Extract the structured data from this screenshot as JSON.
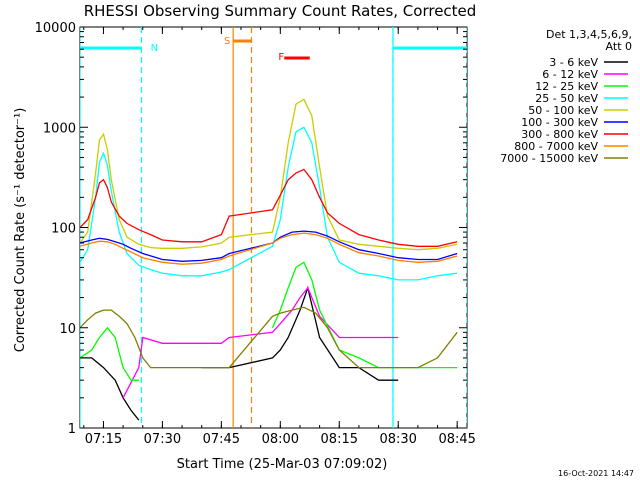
{
  "chart_data": {
    "type": "line",
    "title": "RHESSI Observing Summary Count Rates, Corrected",
    "xlabel": "Start Time (25-Mar-03 07:09:02)",
    "ylabel": "Corrected Count Rate (s⁻¹ detector⁻¹)",
    "y_scale": "log",
    "ylim": [
      1,
      10000
    ],
    "xlim": [
      "07:09:02",
      "08:47:30"
    ],
    "x_ticks": [
      "07:15",
      "07:30",
      "07:45",
      "08:00",
      "08:15",
      "08:30",
      "08:45"
    ],
    "y_ticks": [
      "1",
      "10",
      "100",
      "1000",
      "10000"
    ],
    "grid": false,
    "legend_position": "top-right",
    "legend_header": [
      "Det 1,3,4,5,6,9,",
      "Att 0"
    ],
    "series": [
      {
        "name": "3 - 6 keV",
        "color": "#000000",
        "x": [
          "07:09",
          "07:12",
          "07:15",
          "07:18",
          "07:20",
          "07:22",
          "07:24",
          "07:26",
          "07:30",
          "07:35",
          "07:40",
          "07:45",
          "07:47",
          "07:58",
          "08:00",
          "08:02",
          "08:05",
          "08:07",
          "08:10",
          "08:15",
          "08:20",
          "08:25",
          "08:30"
        ],
        "y": [
          5,
          5,
          4,
          3,
          2,
          1.5,
          1.2,
          null,
          null,
          null,
          4,
          4,
          4,
          5,
          6,
          8,
          15,
          25,
          8,
          4,
          4,
          3,
          3
        ]
      },
      {
        "name": "6 - 12 keV",
        "color": "#ff00ff",
        "x": [
          "07:20",
          "07:24",
          "07:25",
          "07:30",
          "07:35",
          "07:40",
          "07:45",
          "07:47",
          "07:58",
          "08:00",
          "08:03",
          "08:05",
          "08:07",
          "08:10",
          "08:15",
          "08:20",
          "08:25",
          "08:30"
        ],
        "y": [
          2,
          4,
          8,
          7,
          7,
          7,
          7,
          8,
          9,
          11,
          15,
          20,
          25,
          13,
          8,
          8,
          8,
          8
        ]
      },
      {
        "name": "12 - 25 keV",
        "color": "#00ff00",
        "x": [
          "07:09",
          "07:12",
          "07:14",
          "07:16",
          "07:18",
          "07:20",
          "07:22",
          "07:24",
          "07:26",
          "07:30",
          "07:40",
          "07:47",
          "07:58",
          "08:00",
          "08:02",
          "08:04",
          "08:06",
          "08:08",
          "08:10",
          "08:15",
          "08:20",
          "08:25",
          "08:30",
          "08:40",
          "08:45"
        ],
        "y": [
          5,
          6,
          8,
          10,
          8,
          4,
          3,
          3,
          null,
          null,
          null,
          null,
          10,
          15,
          25,
          40,
          45,
          30,
          15,
          6,
          5,
          4,
          4,
          4,
          4
        ]
      },
      {
        "name": "25 - 50 keV",
        "color": "#00ffff",
        "x": [
          "07:09",
          "07:11",
          "07:13",
          "07:14",
          "07:15",
          "07:16",
          "07:17",
          "07:19",
          "07:21",
          "07:24",
          "07:27",
          "07:30",
          "07:35",
          "07:40",
          "07:45",
          "07:47",
          "07:58",
          "08:00",
          "08:02",
          "08:04",
          "08:06",
          "08:08",
          "08:10",
          "08:12",
          "08:15",
          "08:20",
          "08:25",
          "08:30",
          "08:35",
          "08:40",
          "08:45"
        ],
        "y": [
          45,
          60,
          200,
          450,
          550,
          420,
          230,
          90,
          55,
          42,
          38,
          35,
          33,
          33,
          36,
          38,
          65,
          120,
          400,
          900,
          1000,
          700,
          250,
          80,
          45,
          35,
          33,
          30,
          30,
          33,
          35
        ]
      },
      {
        "name": "50 - 100 keV",
        "color": "#cccc00",
        "x": [
          "07:09",
          "07:11",
          "07:13",
          "07:14",
          "07:15",
          "07:16",
          "07:17",
          "07:19",
          "07:21",
          "07:24",
          "07:27",
          "07:30",
          "07:35",
          "07:40",
          "07:45",
          "07:47",
          "07:58",
          "08:00",
          "08:02",
          "08:04",
          "08:06",
          "08:08",
          "08:10",
          "08:12",
          "08:15",
          "08:20",
          "08:25",
          "08:30",
          "08:35",
          "08:40",
          "08:45"
        ],
        "y": [
          70,
          90,
          350,
          750,
          850,
          600,
          300,
          120,
          80,
          68,
          63,
          62,
          62,
          64,
          70,
          80,
          90,
          200,
          700,
          1700,
          1900,
          1300,
          400,
          130,
          75,
          68,
          65,
          62,
          60,
          62,
          68
        ]
      },
      {
        "name": "100 - 300 keV",
        "color": "#0000ff",
        "x": [
          "07:09",
          "07:12",
          "07:14",
          "07:16",
          "07:18",
          "07:20",
          "07:22",
          "07:25",
          "07:30",
          "07:35",
          "07:40",
          "07:45",
          "07:47",
          "07:58",
          "08:00",
          "08:03",
          "08:06",
          "08:09",
          "08:12",
          "08:15",
          "08:20",
          "08:25",
          "08:30",
          "08:35",
          "08:40",
          "08:45"
        ],
        "y": [
          70,
          75,
          78,
          76,
          72,
          68,
          62,
          55,
          48,
          46,
          47,
          50,
          55,
          70,
          80,
          90,
          92,
          90,
          82,
          72,
          60,
          55,
          50,
          48,
          48,
          55
        ]
      },
      {
        "name": "300 - 800 keV",
        "color": "#ff0000",
        "x": [
          "07:09",
          "07:11",
          "07:13",
          "07:14",
          "07:15",
          "07:16",
          "07:17",
          "07:19",
          "07:21",
          "07:24",
          "07:27",
          "07:30",
          "07:35",
          "07:40",
          "07:45",
          "07:47",
          "07:58",
          "08:00",
          "08:02",
          "08:04",
          "08:06",
          "08:08",
          "08:10",
          "08:12",
          "08:15",
          "08:20",
          "08:25",
          "08:30",
          "08:35",
          "08:40",
          "08:45"
        ],
        "y": [
          100,
          120,
          200,
          280,
          300,
          250,
          180,
          130,
          110,
          95,
          85,
          75,
          72,
          72,
          85,
          130,
          150,
          210,
          300,
          350,
          380,
          300,
          200,
          140,
          110,
          85,
          75,
          68,
          65,
          65,
          72
        ]
      },
      {
        "name": "800 - 7000 keV",
        "color": "#ff8000",
        "x": [
          "07:09",
          "07:12",
          "07:14",
          "07:16",
          "07:18",
          "07:20",
          "07:22",
          "07:25",
          "07:30",
          "07:35",
          "07:40",
          "07:45",
          "07:47",
          "07:58",
          "08:00",
          "08:03",
          "08:06",
          "08:09",
          "08:12",
          "08:15",
          "08:20",
          "08:25",
          "08:30",
          "08:35",
          "08:40",
          "08:45"
        ],
        "y": [
          65,
          70,
          73,
          72,
          68,
          62,
          57,
          50,
          45,
          43,
          44,
          48,
          52,
          70,
          78,
          85,
          88,
          85,
          78,
          68,
          56,
          52,
          47,
          45,
          46,
          52
        ]
      },
      {
        "name": "7000 - 15000 keV",
        "color": "#808000",
        "x": [
          "07:09",
          "07:11",
          "07:13",
          "07:15",
          "07:17",
          "07:19",
          "07:21",
          "07:23",
          "07:25",
          "07:27",
          "07:29",
          "07:35",
          "07:40",
          "07:45",
          "07:47",
          "07:58",
          "08:00",
          "08:03",
          "08:06",
          "08:09",
          "08:12",
          "08:15",
          "08:20",
          "08:25",
          "08:30",
          "08:35",
          "08:40",
          "08:45"
        ],
        "y": [
          10,
          12,
          14,
          15,
          15,
          13,
          11,
          8,
          5,
          4,
          4,
          4,
          4,
          4,
          4,
          13,
          14,
          15,
          16,
          14,
          10,
          6,
          4,
          4,
          4,
          4,
          5,
          9
        ]
      }
    ],
    "annotations": [
      {
        "label": "N",
        "meaning": "night",
        "color": "#00ffff"
      },
      {
        "label": "S",
        "meaning": "SAA",
        "color": "#ff8000"
      },
      {
        "label": "F",
        "meaning": "flare",
        "color": "#ff0000"
      }
    ],
    "segments": [
      {
        "label": "N",
        "start": "07:09:02",
        "end": "07:24:40",
        "color": "#00ffff"
      },
      {
        "label": "N",
        "start": "08:28:40",
        "end": "08:47:30",
        "color": "#00ffff"
      },
      {
        "label": "S",
        "start": "07:48:00",
        "end": "07:52:40",
        "color": "#ff8000"
      },
      {
        "label": "F",
        "start": "08:01:00",
        "end": "08:07:30",
        "color": "#ff0000"
      }
    ],
    "markers": [
      {
        "time": "07:24:40",
        "color": "#00ffff",
        "style": "dashed"
      },
      {
        "time": "08:28:40",
        "color": "#00ffff",
        "style": "dashed"
      },
      {
        "time": "07:09:02",
        "color": "#00ffff",
        "style": "solid"
      },
      {
        "time": "08:28:40",
        "color": "#00ffff",
        "style": "solid"
      },
      {
        "time": "08:47:30",
        "color": "#00ffff",
        "style": "dashed"
      },
      {
        "time": "07:48:00",
        "color": "#ff8000",
        "style": "solid"
      },
      {
        "time": "07:52:40",
        "color": "#ff8000",
        "style": "dashed"
      }
    ]
  },
  "footer": {
    "timestamp": "16-Oct-2021 14:47"
  }
}
